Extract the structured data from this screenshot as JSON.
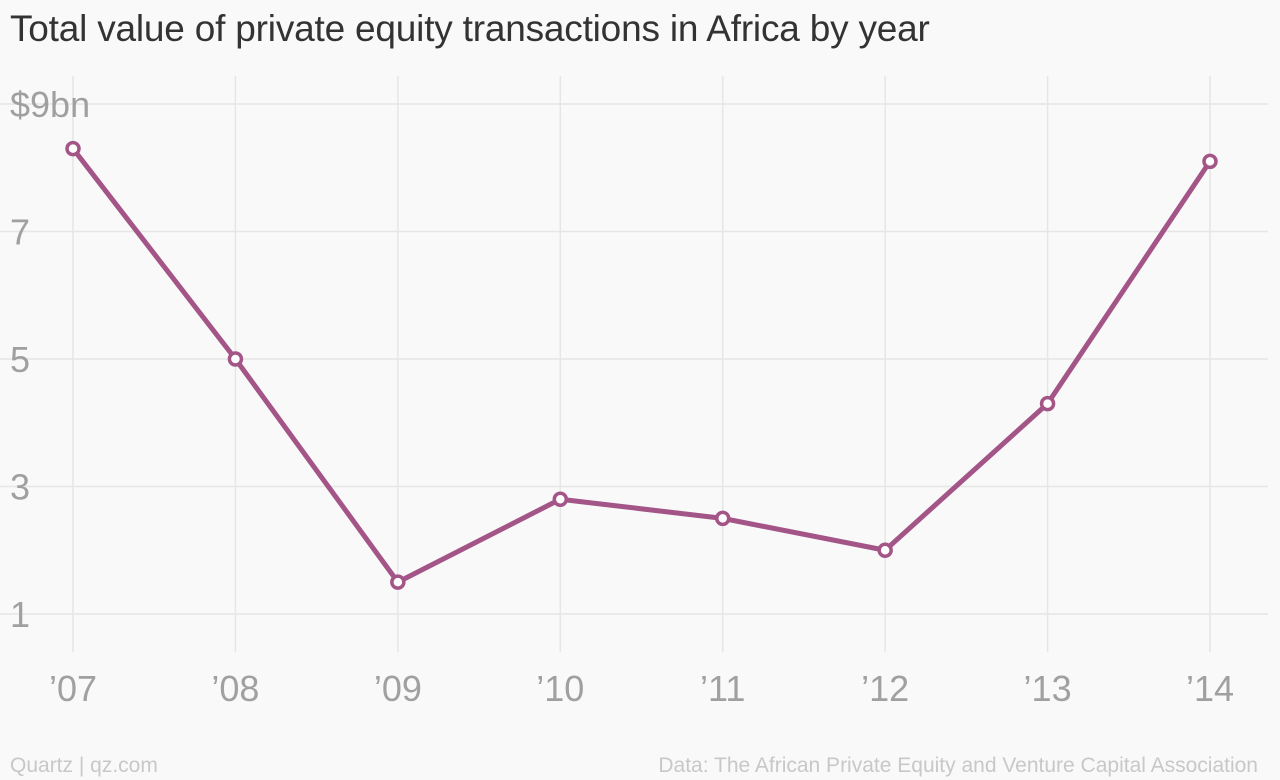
{
  "chart_data": {
    "type": "line",
    "title": "Total value of private equity transactions in Africa by year",
    "categories": [
      "’07",
      "’08",
      "’09",
      "’10",
      "’11",
      "’12",
      "’13",
      "’14"
    ],
    "series": [
      {
        "values": [
          8.3,
          5.0,
          1.5,
          2.8,
          2.5,
          2.0,
          4.3,
          8.1
        ]
      }
    ],
    "y_ticks": [
      {
        "value": 9,
        "label": "$9bn"
      },
      {
        "value": 7,
        "label": "7"
      },
      {
        "value": 5,
        "label": "5"
      },
      {
        "value": 3,
        "label": "3"
      },
      {
        "value": 1,
        "label": "1"
      }
    ],
    "ylim": [
      0.4,
      9
    ],
    "grid": true,
    "colors": {
      "line": "#a45587",
      "grid": "#e6e6e6",
      "tick_text": "#a0a0a0"
    }
  },
  "footer": {
    "source_left": "Quartz | qz.com",
    "source_right": "Data: The African Private Equity and Venture Capital Association"
  }
}
